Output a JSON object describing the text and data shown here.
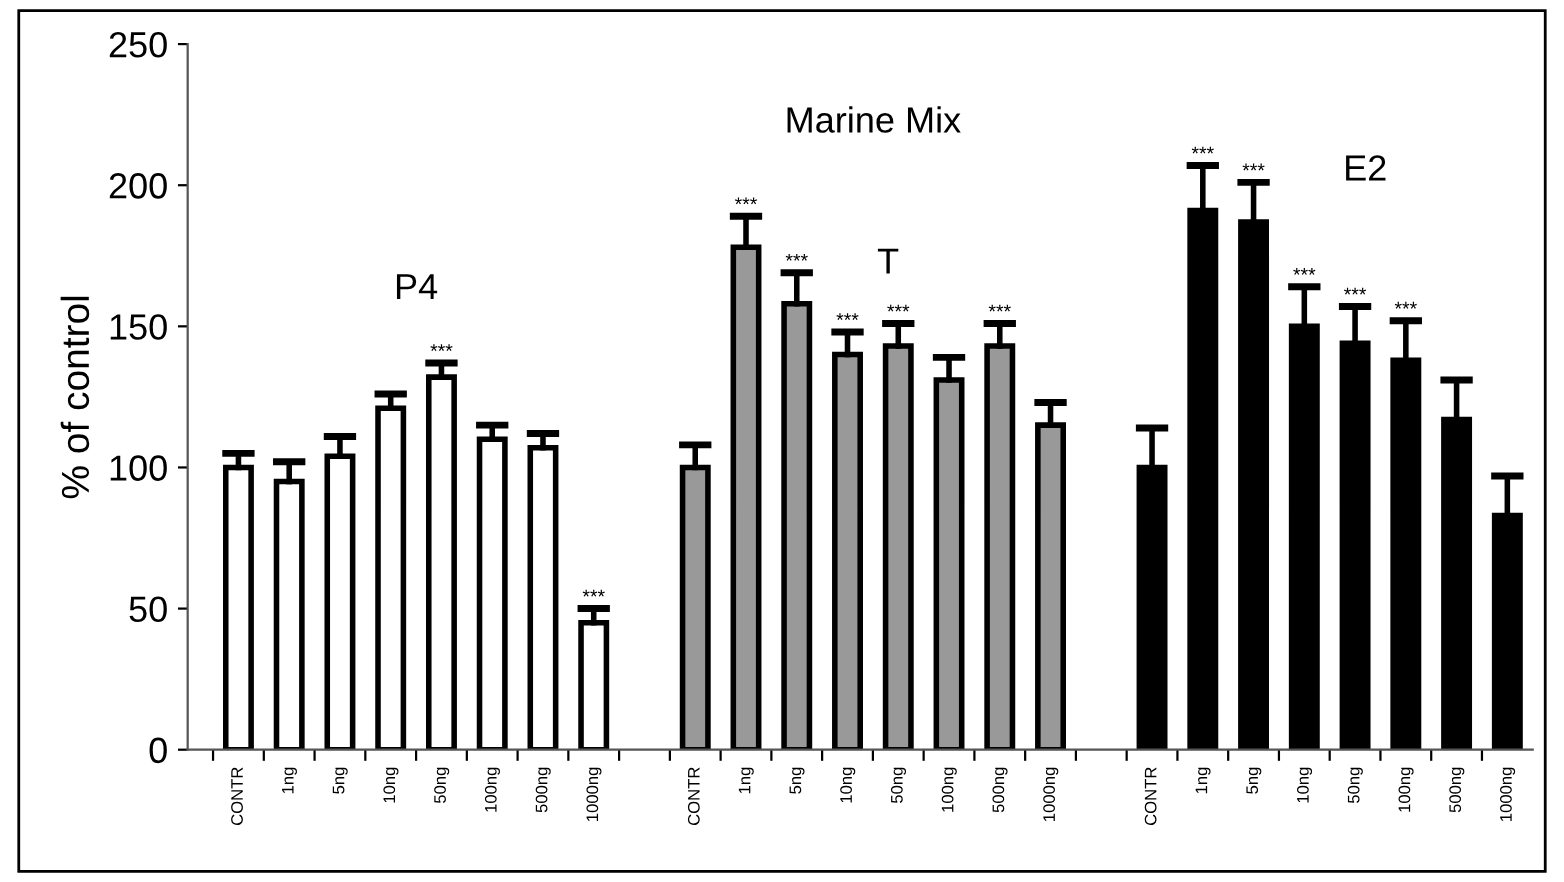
{
  "chart_data": {
    "type": "bar",
    "ylabel": "% of control",
    "annotations": [
      "Marine Mix",
      "P4",
      "T",
      "E2"
    ],
    "categories": [
      "CONTR",
      "1ng",
      "5ng",
      "10ng",
      "50ng",
      "100ng",
      "500ng",
      "1000ng",
      null,
      "CONTR",
      "1ng",
      "5ng",
      "10ng",
      "50ng",
      "100ng",
      "500ng",
      "1000ng",
      null,
      "CONTR",
      "1ng",
      "5ng",
      "10ng",
      "50ng",
      "100ng",
      "500ng",
      "1000ng"
    ],
    "values": [
      100,
      95,
      104,
      121,
      132,
      110,
      107,
      45,
      null,
      100,
      178,
      158,
      140,
      143,
      131,
      143,
      115,
      null,
      100,
      191,
      187,
      150,
      144,
      138,
      117,
      83
    ],
    "errors": [
      [
        100,
        105
      ],
      [
        95,
        102
      ],
      [
        104,
        111
      ],
      [
        121,
        126
      ],
      [
        132,
        137
      ],
      [
        110,
        115
      ],
      [
        107,
        112
      ],
      [
        45,
        50
      ],
      null,
      [
        100,
        108
      ],
      [
        178,
        189
      ],
      [
        158,
        169
      ],
      [
        140,
        148
      ],
      [
        143,
        151
      ],
      [
        131,
        139
      ],
      [
        143,
        151
      ],
      [
        115,
        123
      ],
      null,
      [
        100,
        114
      ],
      [
        191,
        207
      ],
      [
        187,
        201
      ],
      [
        150,
        164
      ],
      [
        144,
        157
      ],
      [
        138,
        152
      ],
      [
        117,
        131
      ],
      [
        83,
        97
      ]
    ],
    "value_labels": [
      null,
      null,
      null,
      null,
      "***",
      null,
      null,
      "***",
      null,
      null,
      "***",
      "***",
      "***",
      "***",
      null,
      "***",
      null,
      null,
      null,
      "***",
      "***",
      "***",
      "***",
      "***",
      null,
      null
    ],
    "colors": [
      "#ffffff",
      "#ffffff",
      "#ffffff",
      "#ffffff",
      "#ffffff",
      "#ffffff",
      "#ffffff",
      "#ffffff",
      "#ffffff",
      "#999999",
      "#999999",
      "#999999",
      "#999999",
      "#999999",
      "#999999",
      "#999999",
      "#999999",
      "#999999",
      "#000000",
      "#000000",
      "#000000",
      "#000000",
      "#000000",
      "#000000",
      "#000000",
      "#000000"
    ],
    "ylim": [
      0,
      250
    ],
    "yticks": [
      0,
      50,
      100,
      150,
      200,
      250
    ],
    "grid": false,
    "legend": false
  }
}
